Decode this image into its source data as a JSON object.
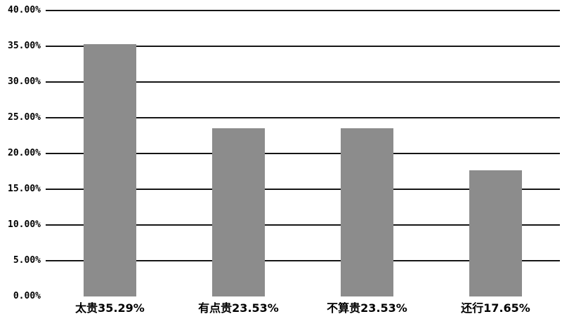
{
  "chart_data": {
    "type": "bar",
    "title": "",
    "xlabel": "",
    "ylabel": "",
    "categories": [
      "太贵",
      "有点贵",
      "不算贵",
      "还行"
    ],
    "values": [
      35.29,
      23.53,
      23.53,
      17.65
    ],
    "x_tick_labels": [
      "太贵35.29%",
      "有点贵23.53%",
      "不算贵23.53%",
      "还行17.65%"
    ],
    "y_tick_values": [
      40,
      35,
      30,
      25,
      20,
      15,
      10,
      5,
      0
    ],
    "y_tick_labels": [
      "40.00%",
      "35.00%",
      "30.00%",
      "25.00%",
      "20.00%",
      "15.00%",
      "10.00%",
      "5.00%",
      "0.00%"
    ],
    "ylim": [
      0,
      40
    ],
    "grid": "horizontal",
    "zero_baseline_drawn": false,
    "legend_position": "none",
    "bar_color": "#8c8c8c",
    "gridline_color": "#151515",
    "text_color": "#000000",
    "background_color": "#ffffff"
  }
}
